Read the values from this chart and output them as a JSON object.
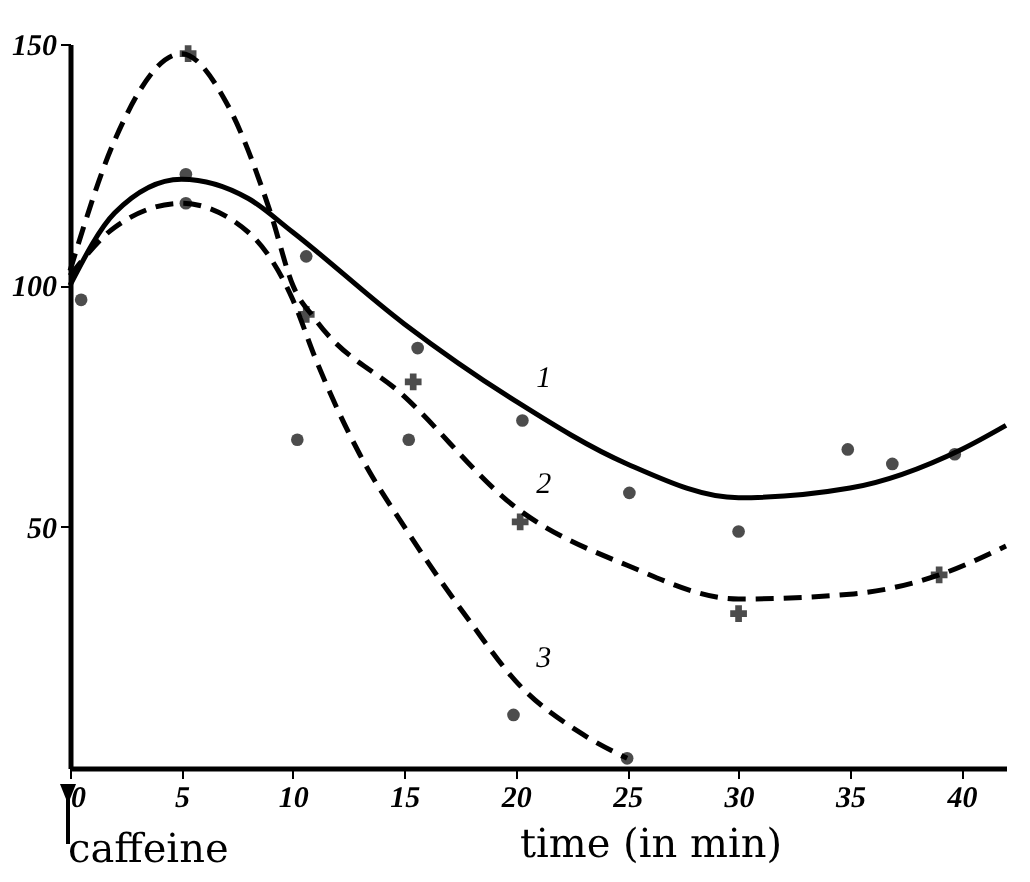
{
  "chart_data": {
    "type": "line",
    "xlabel": "time (in min)",
    "xlim": [
      0,
      42
    ],
    "ylim": [
      0,
      150
    ],
    "xticks": [
      0,
      5,
      10,
      15,
      20,
      25,
      30,
      35,
      40
    ],
    "yticks": [
      50,
      100,
      150
    ],
    "grid": false,
    "series": [
      {
        "type": "line",
        "name": "1",
        "color": "#000000",
        "line_style": "solid",
        "marker": "none",
        "x": [
          0,
          2,
          5,
          8,
          10,
          15,
          20,
          25,
          30,
          35,
          40,
          42
        ],
        "values": [
          100,
          115,
          122,
          118,
          111,
          92,
          76,
          63,
          56,
          58,
          66,
          71
        ]
      },
      {
        "type": "line",
        "name": "2",
        "color": "#000000",
        "line_style": "dashed",
        "marker": "none",
        "x": [
          0,
          2,
          5,
          7,
          9,
          10,
          11,
          15,
          20,
          25,
          30,
          35,
          39,
          42
        ],
        "values": [
          103,
          130,
          148,
          138,
          115,
          100,
          93,
          77,
          54,
          42,
          35,
          36,
          40,
          46
        ]
      },
      {
        "type": "line",
        "name": "3",
        "color": "#000000",
        "line_style": "dashed",
        "marker": "none",
        "x": [
          0,
          2,
          5,
          8,
          10,
          11,
          13,
          15,
          18,
          20,
          23,
          25
        ],
        "values": [
          102,
          112,
          117,
          111,
          97,
          85,
          65,
          50,
          30,
          18,
          7,
          2
        ]
      },
      {
        "type": "scatter",
        "color": "#000000",
        "marker": "circle",
        "x": [
          5.2,
          10.6,
          15.6,
          20.3,
          25.1,
          30,
          34.9,
          36.9,
          39.7
        ],
        "values": [
          123,
          106,
          87,
          72,
          57,
          49,
          66,
          63,
          65
        ]
      },
      {
        "type": "scatter",
        "color": "#000000",
        "marker": "cross",
        "x": [
          5.3,
          10.6,
          15.4,
          20.2,
          30,
          39
        ],
        "values": [
          148,
          94,
          80,
          51,
          32,
          40
        ]
      },
      {
        "type": "scatter",
        "color": "#000000",
        "marker": "circle",
        "x": [
          0.5,
          5.2,
          10.2,
          15.2,
          19.9,
          25
        ],
        "values": [
          97,
          117,
          68,
          68,
          11,
          2
        ]
      }
    ],
    "annotations": [
      "caffeine"
    ]
  }
}
